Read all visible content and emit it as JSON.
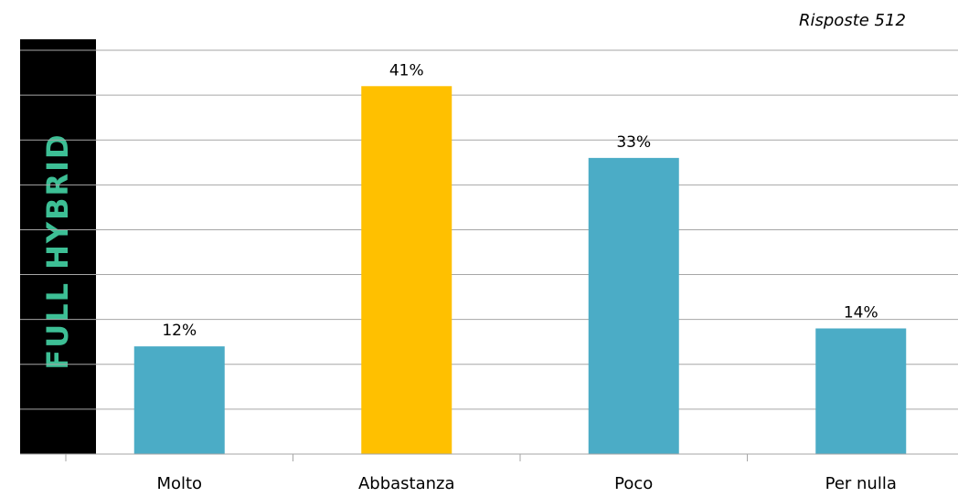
{
  "side_title": "FULL HYBRID",
  "respondents_label": "Risposte 512",
  "colors": {
    "side_band": "#000000",
    "side_title": "#3dbf95",
    "bar_default": "#4bacc6",
    "bar_highlight": "#ffc000",
    "gridline": "#a6a6a6"
  },
  "chart_data": {
    "type": "bar",
    "title": "",
    "xlabel": "",
    "ylabel": "",
    "categories": [
      "Molto",
      "Abbastanza",
      "Poco",
      "Per nulla"
    ],
    "values": [
      12,
      41,
      33,
      14
    ],
    "value_labels": [
      "12%",
      "41%",
      "33%",
      "14%"
    ],
    "unit": "%",
    "highlight_index": 1,
    "ylim": [
      0,
      45
    ],
    "grid": true,
    "legend": "none"
  }
}
